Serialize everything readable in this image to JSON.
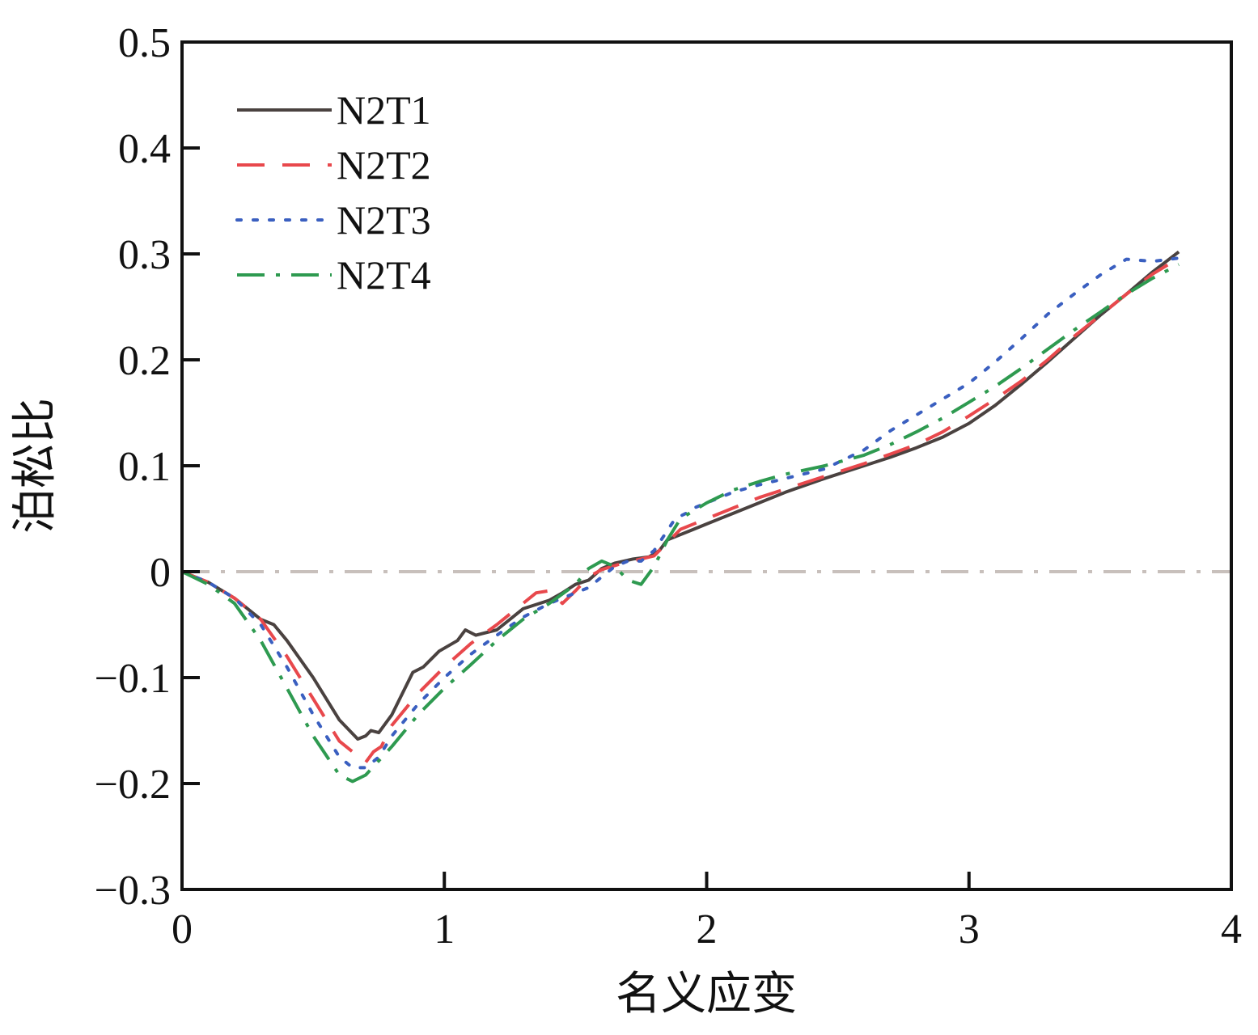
{
  "chart_data": {
    "type": "line",
    "xlabel": "名义应变",
    "ylabel": "泊松比",
    "xlim": [
      0,
      4
    ],
    "ylim": [
      -0.3,
      0.5
    ],
    "x_ticks": [
      "0",
      "1",
      "2",
      "3",
      "4"
    ],
    "y_ticks": [
      "−0.3",
      "−0.2",
      "−0.1",
      "0",
      "0.1",
      "0.2",
      "0.3",
      "0.4",
      "0.5"
    ],
    "grid": false,
    "legend_position": "top-left",
    "reference_line": {
      "y": 0,
      "color": "#c8c0bc",
      "style": "dash-dot"
    },
    "series": [
      {
        "name": "N2T1",
        "color": "#4a4240",
        "style": "solid",
        "points": [
          [
            0,
            0
          ],
          [
            0.1,
            -0.01
          ],
          [
            0.2,
            -0.025
          ],
          [
            0.3,
            -0.045
          ],
          [
            0.35,
            -0.05
          ],
          [
            0.4,
            -0.065
          ],
          [
            0.5,
            -0.1
          ],
          [
            0.6,
            -0.14
          ],
          [
            0.67,
            -0.158
          ],
          [
            0.7,
            -0.155
          ],
          [
            0.72,
            -0.15
          ],
          [
            0.75,
            -0.152
          ],
          [
            0.8,
            -0.135
          ],
          [
            0.85,
            -0.11
          ],
          [
            0.88,
            -0.095
          ],
          [
            0.92,
            -0.09
          ],
          [
            0.98,
            -0.075
          ],
          [
            1.05,
            -0.065
          ],
          [
            1.08,
            -0.055
          ],
          [
            1.12,
            -0.06
          ],
          [
            1.2,
            -0.055
          ],
          [
            1.25,
            -0.045
          ],
          [
            1.3,
            -0.035
          ],
          [
            1.4,
            -0.027
          ],
          [
            1.45,
            -0.02
          ],
          [
            1.5,
            -0.012
          ],
          [
            1.55,
            -0.008
          ],
          [
            1.6,
            0.003
          ],
          [
            1.65,
            0.008
          ],
          [
            1.72,
            0.012
          ],
          [
            1.78,
            0.014
          ],
          [
            1.82,
            0.02
          ],
          [
            1.85,
            0.03
          ],
          [
            1.95,
            0.04
          ],
          [
            2.0,
            0.045
          ],
          [
            2.1,
            0.055
          ],
          [
            2.2,
            0.065
          ],
          [
            2.3,
            0.075
          ],
          [
            2.45,
            0.088
          ],
          [
            2.6,
            0.1
          ],
          [
            2.7,
            0.108
          ],
          [
            2.8,
            0.117
          ],
          [
            2.9,
            0.127
          ],
          [
            3.0,
            0.14
          ],
          [
            3.1,
            0.157
          ],
          [
            3.2,
            0.177
          ],
          [
            3.3,
            0.198
          ],
          [
            3.4,
            0.22
          ],
          [
            3.5,
            0.242
          ],
          [
            3.6,
            0.262
          ],
          [
            3.7,
            0.283
          ],
          [
            3.8,
            0.302
          ]
        ]
      },
      {
        "name": "N2T2",
        "color": "#e8484c",
        "style": "dashed",
        "points": [
          [
            0,
            0
          ],
          [
            0.1,
            -0.01
          ],
          [
            0.2,
            -0.025
          ],
          [
            0.3,
            -0.045
          ],
          [
            0.4,
            -0.08
          ],
          [
            0.5,
            -0.12
          ],
          [
            0.6,
            -0.16
          ],
          [
            0.7,
            -0.18
          ],
          [
            0.73,
            -0.17
          ],
          [
            0.76,
            -0.165
          ],
          [
            0.8,
            -0.145
          ],
          [
            0.9,
            -0.115
          ],
          [
            1.0,
            -0.09
          ],
          [
            1.1,
            -0.068
          ],
          [
            1.2,
            -0.05
          ],
          [
            1.3,
            -0.03
          ],
          [
            1.35,
            -0.02
          ],
          [
            1.4,
            -0.018
          ],
          [
            1.45,
            -0.03
          ],
          [
            1.5,
            -0.018
          ],
          [
            1.55,
            -0.005
          ],
          [
            1.6,
            0.002
          ],
          [
            1.68,
            0.008
          ],
          [
            1.75,
            0.012
          ],
          [
            1.8,
            0.015
          ],
          [
            1.9,
            0.04
          ],
          [
            2.0,
            0.05
          ],
          [
            2.1,
            0.06
          ],
          [
            2.2,
            0.07
          ],
          [
            2.3,
            0.078
          ],
          [
            2.45,
            0.09
          ],
          [
            2.6,
            0.102
          ],
          [
            2.7,
            0.111
          ],
          [
            2.8,
            0.12
          ],
          [
            2.9,
            0.132
          ],
          [
            3.0,
            0.147
          ],
          [
            3.1,
            0.163
          ],
          [
            3.2,
            0.18
          ],
          [
            3.3,
            0.2
          ],
          [
            3.4,
            0.222
          ],
          [
            3.5,
            0.242
          ],
          [
            3.6,
            0.262
          ],
          [
            3.7,
            0.281
          ],
          [
            3.8,
            0.296
          ]
        ]
      },
      {
        "name": "N2T3",
        "color": "#3a5fc0",
        "style": "dotted",
        "points": [
          [
            0,
            0
          ],
          [
            0.1,
            -0.01
          ],
          [
            0.2,
            -0.025
          ],
          [
            0.3,
            -0.05
          ],
          [
            0.4,
            -0.09
          ],
          [
            0.5,
            -0.135
          ],
          [
            0.6,
            -0.175
          ],
          [
            0.65,
            -0.185
          ],
          [
            0.7,
            -0.185
          ],
          [
            0.75,
            -0.175
          ],
          [
            0.8,
            -0.155
          ],
          [
            0.9,
            -0.125
          ],
          [
            1.0,
            -0.1
          ],
          [
            1.1,
            -0.078
          ],
          [
            1.2,
            -0.06
          ],
          [
            1.3,
            -0.043
          ],
          [
            1.4,
            -0.03
          ],
          [
            1.5,
            -0.02
          ],
          [
            1.55,
            -0.015
          ],
          [
            1.6,
            -0.005
          ],
          [
            1.65,
            0.005
          ],
          [
            1.7,
            0.01
          ],
          [
            1.75,
            0.01
          ],
          [
            1.8,
            0.02
          ],
          [
            1.88,
            0.05
          ],
          [
            1.92,
            0.055
          ],
          [
            1.95,
            0.06
          ],
          [
            2.0,
            0.065
          ],
          [
            2.1,
            0.075
          ],
          [
            2.2,
            0.082
          ],
          [
            2.3,
            0.088
          ],
          [
            2.45,
            0.097
          ],
          [
            2.6,
            0.115
          ],
          [
            2.7,
            0.133
          ],
          [
            2.8,
            0.148
          ],
          [
            2.9,
            0.163
          ],
          [
            3.0,
            0.178
          ],
          [
            3.1,
            0.198
          ],
          [
            3.2,
            0.22
          ],
          [
            3.3,
            0.243
          ],
          [
            3.4,
            0.262
          ],
          [
            3.5,
            0.28
          ],
          [
            3.6,
            0.295
          ],
          [
            3.7,
            0.293
          ],
          [
            3.8,
            0.296
          ]
        ]
      },
      {
        "name": "N2T4",
        "color": "#2e9a50",
        "style": "dash-dot",
        "points": [
          [
            0,
            0
          ],
          [
            0.1,
            -0.012
          ],
          [
            0.2,
            -0.03
          ],
          [
            0.3,
            -0.065
          ],
          [
            0.4,
            -0.11
          ],
          [
            0.5,
            -0.155
          ],
          [
            0.6,
            -0.192
          ],
          [
            0.65,
            -0.198
          ],
          [
            0.7,
            -0.192
          ],
          [
            0.8,
            -0.165
          ],
          [
            0.9,
            -0.135
          ],
          [
            1.0,
            -0.11
          ],
          [
            1.1,
            -0.088
          ],
          [
            1.2,
            -0.065
          ],
          [
            1.3,
            -0.045
          ],
          [
            1.4,
            -0.03
          ],
          [
            1.5,
            -0.012
          ],
          [
            1.55,
            0.003
          ],
          [
            1.6,
            0.01
          ],
          [
            1.65,
            0.005
          ],
          [
            1.7,
            -0.008
          ],
          [
            1.75,
            -0.012
          ],
          [
            1.8,
            0.005
          ],
          [
            1.85,
            0.03
          ],
          [
            1.9,
            0.05
          ],
          [
            2.0,
            0.065
          ],
          [
            2.1,
            0.077
          ],
          [
            2.2,
            0.085
          ],
          [
            2.3,
            0.092
          ],
          [
            2.45,
            0.1
          ],
          [
            2.6,
            0.11
          ],
          [
            2.7,
            0.12
          ],
          [
            2.8,
            0.132
          ],
          [
            2.9,
            0.145
          ],
          [
            3.0,
            0.16
          ],
          [
            3.1,
            0.175
          ],
          [
            3.2,
            0.192
          ],
          [
            3.3,
            0.21
          ],
          [
            3.4,
            0.228
          ],
          [
            3.5,
            0.245
          ],
          [
            3.6,
            0.262
          ],
          [
            3.7,
            0.277
          ],
          [
            3.8,
            0.29
          ]
        ]
      }
    ]
  }
}
